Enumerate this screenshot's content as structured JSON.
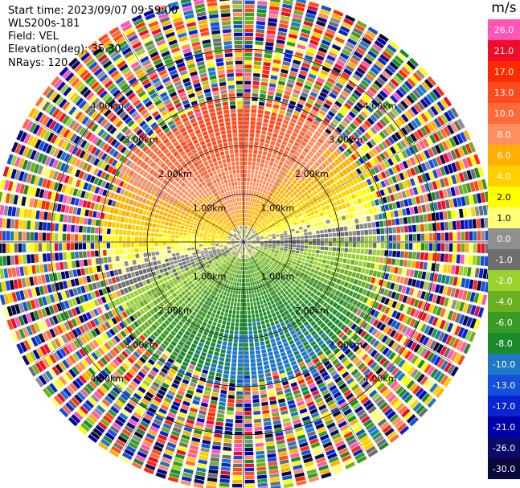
{
  "header": {
    "start_time": "Start time: 2023/09/07 09:59:00",
    "station": "WLS200s-181",
    "field": "Field: VEL",
    "elevation": "Elevation(deg): 35.30",
    "nrays": "NRays: 120"
  },
  "chart_data": {
    "type": "heatmap",
    "subtype": "polar-ppi",
    "field": "VEL",
    "nrays": 120,
    "range_rings_km": [
      1.0,
      2.0,
      3.0,
      4.0
    ],
    "ring_labels": [
      "1.00km",
      "2.00km",
      "3.00km",
      "4.00km"
    ],
    "colorbar": {
      "unit": "m/s",
      "ticks": [
        "26.0",
        "21.0",
        "17.0",
        "13.0",
        "10.0",
        "8.0",
        "6.0",
        "4.0",
        "2.0",
        "1.0",
        "0.0",
        "-1.0",
        "-2.0",
        "-4.0",
        "-6.0",
        "-8.0",
        "-10.0",
        "-13.0",
        "-17.0",
        "-21.0",
        "-26.0",
        "-30.0"
      ],
      "colors": [
        "#ff55b4",
        "#ee0c2a",
        "#ff2a00",
        "#ff4a1e",
        "#ff6a38",
        "#ff8e60",
        "#ffb000",
        "#ffd000",
        "#ffff00",
        "#ffff7a",
        "#8f8f8f",
        "#6e6e6e",
        "#9ad22e",
        "#6ab020",
        "#3a9a26",
        "#1c8a2c",
        "#1e78c8",
        "#1450dc",
        "#0a24d0",
        "#0000a8",
        "#0a0a6a",
        "#08083a"
      ]
    }
  }
}
